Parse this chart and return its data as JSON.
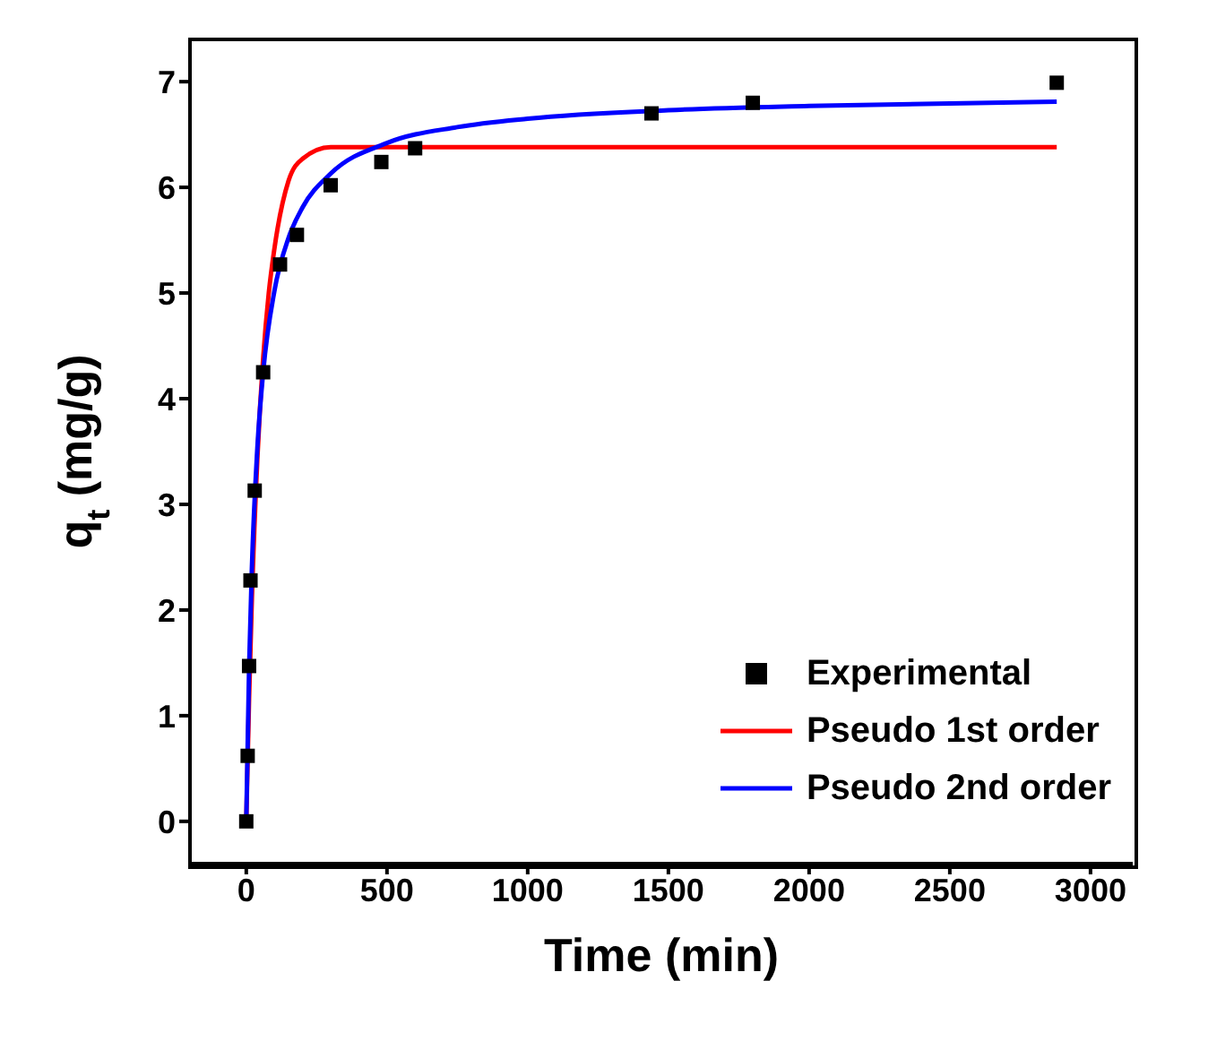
{
  "chart_data": {
    "type": "scatter",
    "xlabel": "Time (min)",
    "ylabel": "q$_{t}$ (mg/g)",
    "xlim": [
      -200,
      3150
    ],
    "xticks": [
      0,
      500,
      1000,
      1500,
      2000,
      2500,
      3000
    ],
    "ylim": [
      -0.4,
      7.4
    ],
    "yticks": [
      0,
      1,
      2,
      3,
      4,
      5,
      6,
      7
    ],
    "grid": false,
    "legend": "bottom right",
    "series": [
      {
        "name": "Experimental",
        "marker": "square",
        "color": "#000000",
        "x": [
          0,
          5,
          10,
          15,
          30,
          60,
          120,
          180,
          300,
          480,
          600,
          1440,
          1800,
          2880
        ],
        "values": [
          0,
          0.62,
          1.47,
          2.28,
          3.13,
          4.25,
          5.27,
          5.55,
          6.02,
          6.24,
          6.37,
          6.7,
          6.8,
          6.99
        ]
      },
      {
        "name": "Pseudo 1st order",
        "type": "line",
        "marker": "none",
        "line_style": "solid",
        "color": "#ff0000",
        "x": [
          0,
          10,
          20,
          40,
          60,
          80,
          100,
          150,
          200,
          300,
          400,
          600,
          1000,
          2880
        ],
        "values": [
          0,
          1.16,
          2.11,
          3.46,
          4.38,
          5.0,
          5.42,
          6.06,
          6.27,
          6.38,
          6.38,
          6.38,
          6.38,
          6.38
        ]
      },
      {
        "name": "Pseudo 2nd order",
        "type": "line",
        "marker": "none",
        "line_style": "solid",
        "color": "#0000ff",
        "x": [
          0,
          10,
          20,
          40,
          60,
          100,
          150,
          200,
          300,
          500,
          750,
          1000,
          1500,
          2000,
          2880
        ],
        "values": [
          0,
          1.45,
          2.4,
          3.56,
          4.25,
          5.02,
          5.52,
          5.81,
          6.13,
          6.42,
          6.57,
          6.65,
          6.73,
          6.77,
          6.81
        ]
      }
    ]
  }
}
